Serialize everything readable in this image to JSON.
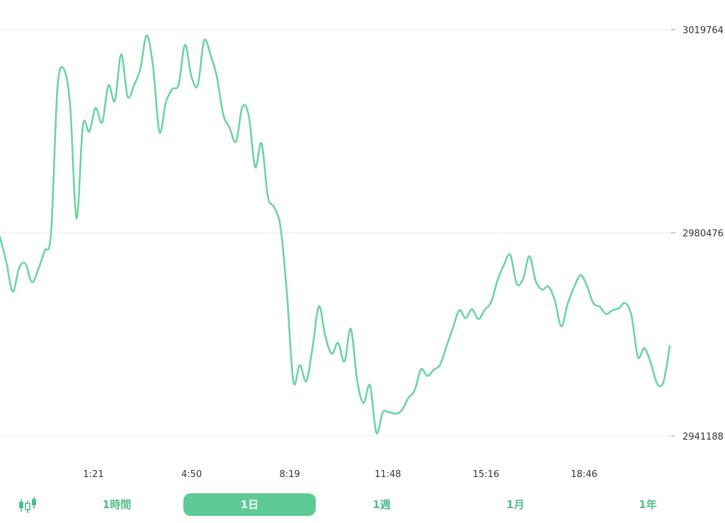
{
  "colors": {
    "line": "#6dd3a3",
    "grid": "#eeeeee",
    "axis_text": "#333333",
    "accent": "#5ecb97",
    "tab_text": "#4fbf8a"
  },
  "timeframe_tabs": [
    {
      "label": "1時間",
      "active": false
    },
    {
      "label": "1日",
      "active": true
    },
    {
      "label": "1週",
      "active": false
    },
    {
      "label": "1月",
      "active": false
    },
    {
      "label": "1年",
      "active": false
    }
  ],
  "candlestick_toggle": {
    "icon": "candlestick-chart-icon"
  },
  "chart_data": {
    "type": "line",
    "title": "",
    "xlabel": "",
    "ylabel": "",
    "ylim": [
      2941188,
      3019764
    ],
    "y_ticks": [
      "3019764",
      "2980476",
      "2941188"
    ],
    "x_ticks": [
      "1:21",
      "4:50",
      "8:19",
      "11:48",
      "15:16",
      "18:46"
    ],
    "grid": true,
    "series": [
      {
        "values": [
          2979700,
          2974770,
          2969100,
          2973730,
          2974500,
          2970950,
          2973460,
          2977000,
          2980500,
          3008330,
          3012150,
          3005000,
          2983300,
          3001260,
          3000030,
          3004640,
          3001790,
          3009010,
          3006010,
          3015010,
          3006830,
          3009010,
          3012170,
          3018670,
          3012660,
          2999970,
          3005690,
          3008280,
          3009150,
          3016840,
          3010760,
          3009010,
          3017660,
          3014930,
          3010630,
          3003400,
          3000800,
          2998130,
          3004870,
          3003100,
          2993200,
          2997780,
          2987430,
          2985400,
          2981400,
          2968500,
          2951710,
          2954900,
          2951800,
          2958300,
          2966300,
          2960500,
          2957100,
          2959200,
          2955600,
          2961900,
          2951900,
          2947600,
          2951000,
          2941800,
          2945800,
          2945800,
          2945500,
          2946200,
          2948500,
          2950000,
          2954100,
          2952800,
          2954000,
          2955000,
          2958600,
          2962100,
          2965500,
          2964000,
          2965700,
          2963800,
          2965600,
          2967100,
          2971300,
          2974300,
          2976200,
          2970600,
          2971600,
          2976000,
          2971100,
          2969500,
          2970100,
          2967300,
          2962400,
          2966800,
          2970000,
          2972300,
          2970300,
          2966900,
          2966200,
          2964800,
          2965500,
          2965900,
          2966900,
          2964500,
          2956500,
          2958200,
          2955400,
          2951400,
          2951600,
          2958600
        ]
      }
    ]
  }
}
